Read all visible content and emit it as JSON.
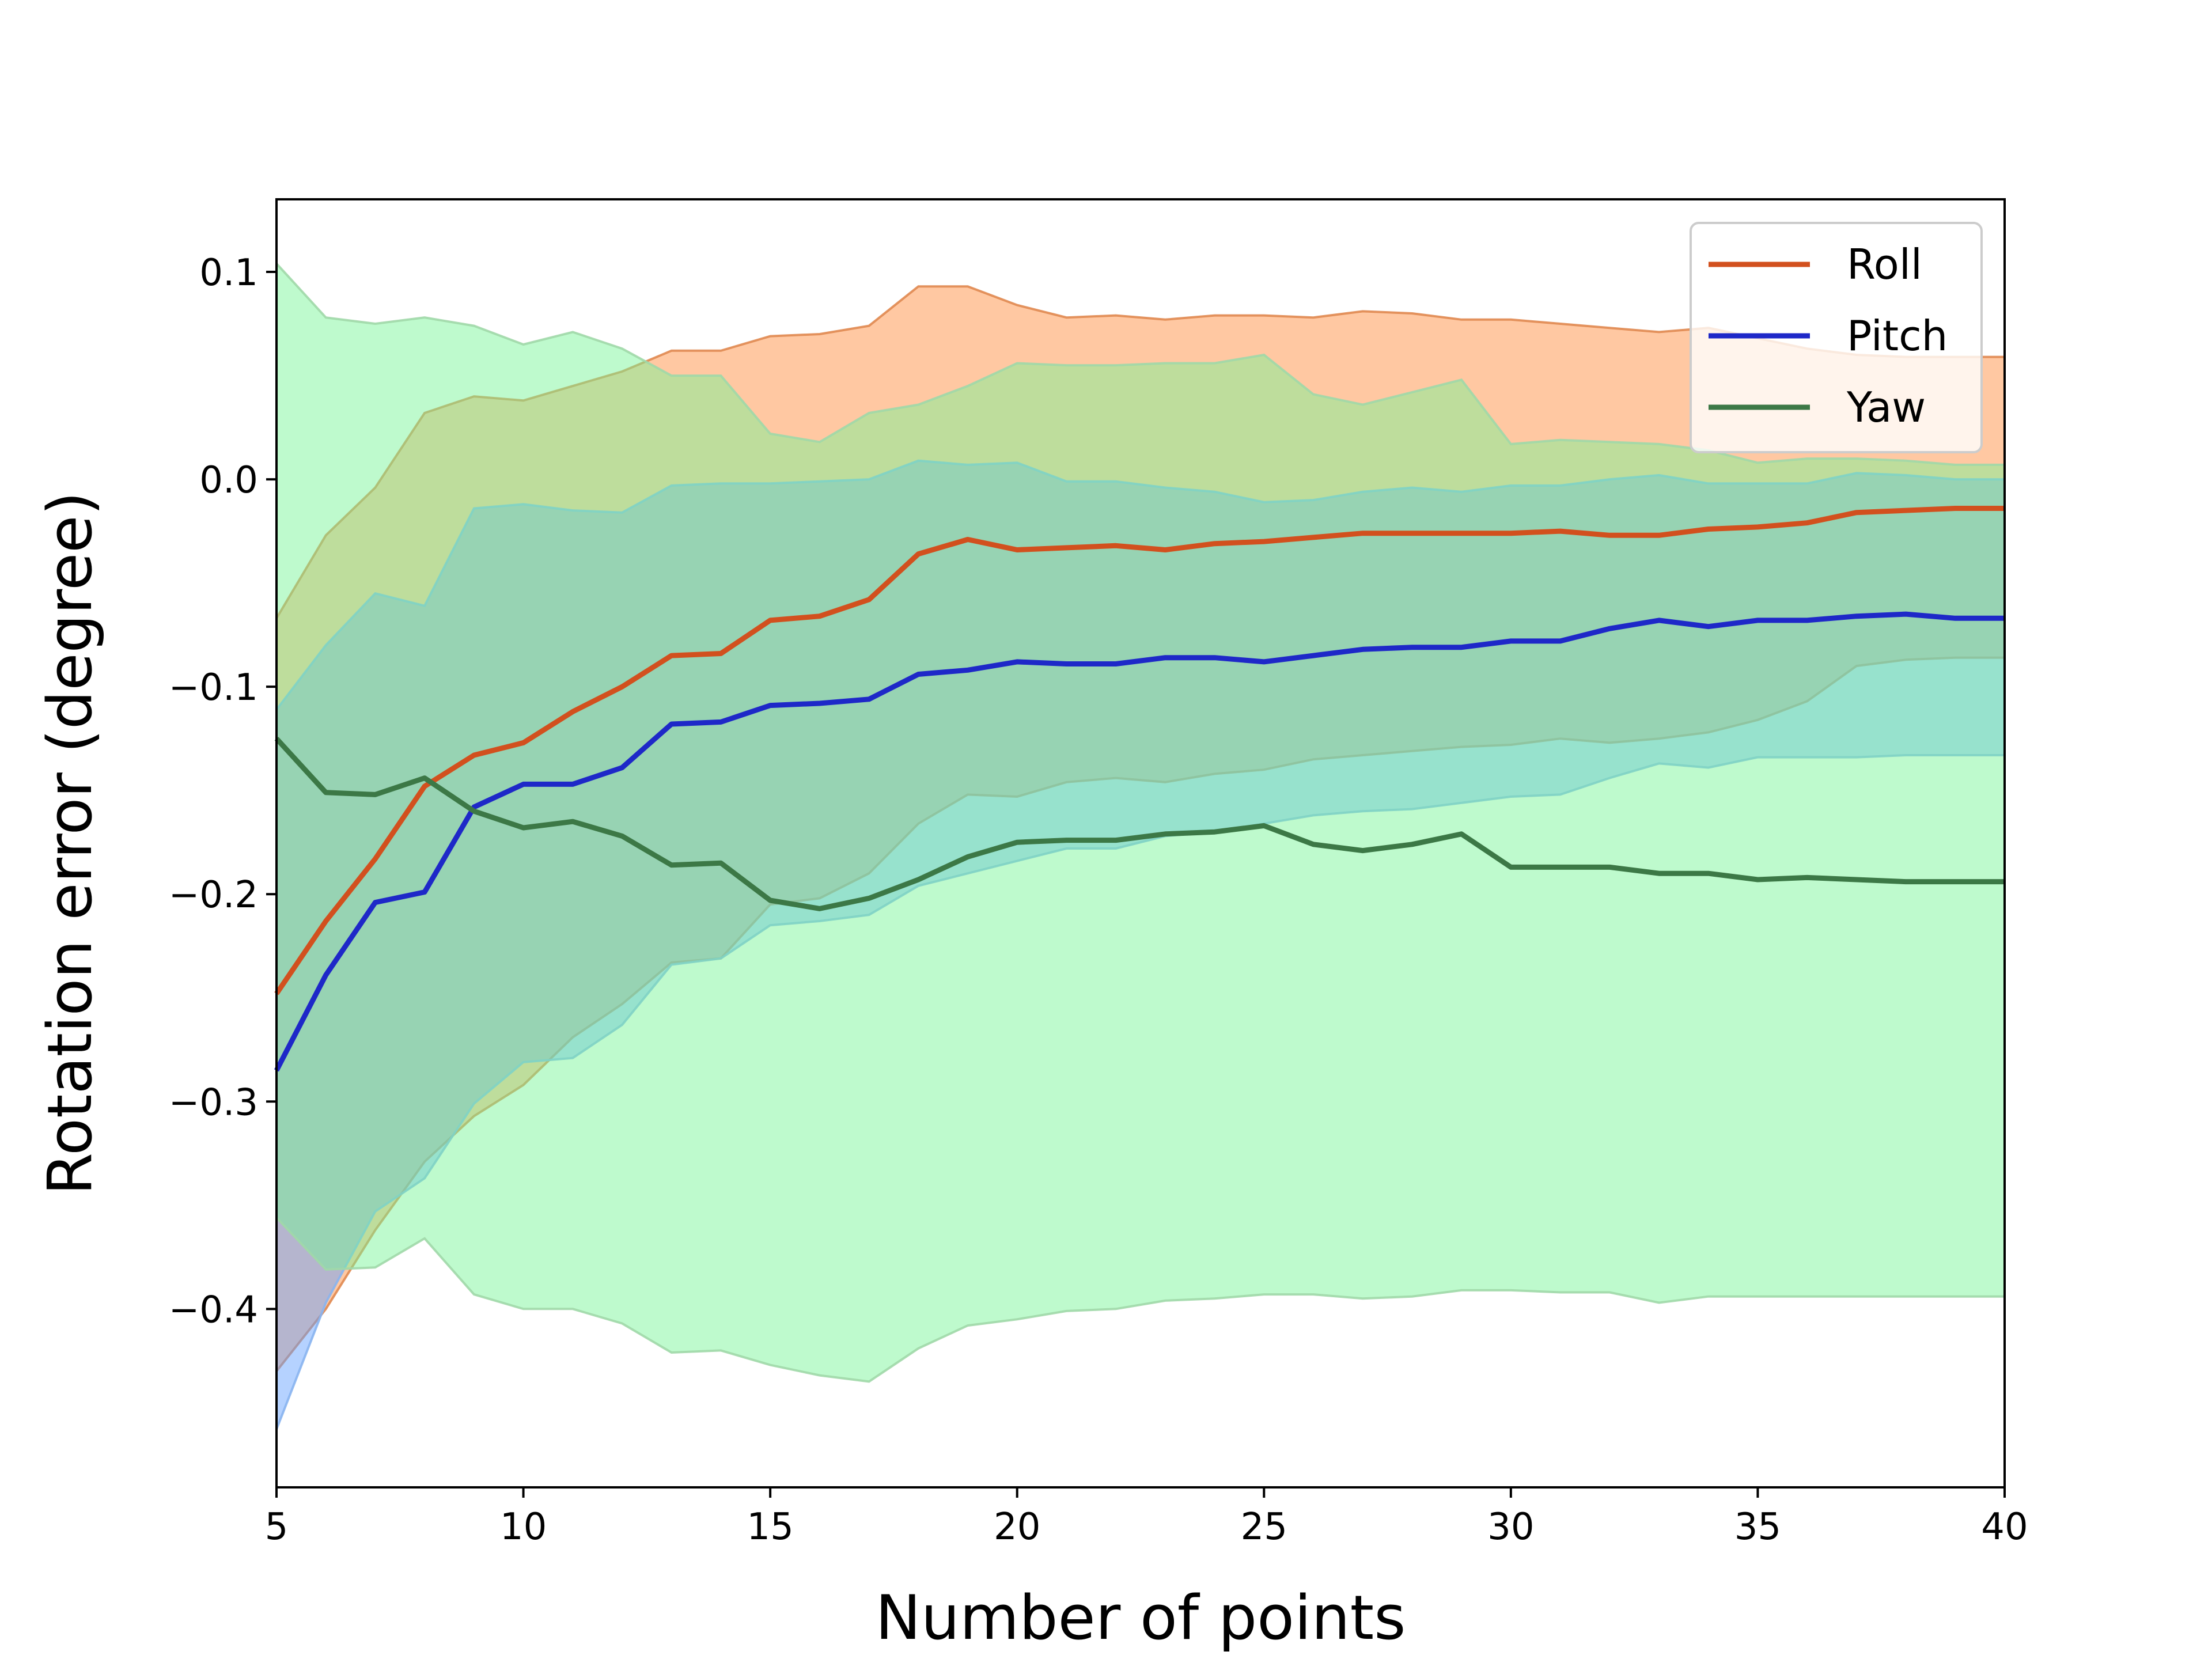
{
  "chart_data": {
    "type": "line",
    "title": "",
    "xlabel": "Number of points",
    "ylabel": "Rotation error (degree)",
    "xlim": [
      5,
      40
    ],
    "ylim": [
      -0.486,
      0.135
    ],
    "x_ticks": [
      5,
      10,
      15,
      20,
      25,
      30,
      35,
      40
    ],
    "x_tick_labels": [
      "5",
      "10",
      "15",
      "20",
      "25",
      "30",
      "35",
      "40"
    ],
    "y_ticks": [
      0.1,
      0.0,
      -0.1,
      -0.2,
      -0.3,
      -0.4
    ],
    "y_tick_labels": [
      "0.1",
      "0.0",
      "−0.1",
      "−0.2",
      "−0.3",
      "−0.4"
    ],
    "grid": false,
    "legend_position": "top-right",
    "x": [
      5,
      6,
      7,
      8,
      9,
      10,
      11,
      12,
      13,
      14,
      15,
      16,
      17,
      18,
      19,
      20,
      21,
      22,
      23,
      24,
      25,
      26,
      27,
      28,
      29,
      30,
      31,
      32,
      33,
      34,
      35,
      36,
      37,
      38,
      39,
      40
    ],
    "series": [
      {
        "name": "Roll",
        "color": "#d2501e",
        "band_color": "#ff8c3c",
        "band_edge_color": "#e08850",
        "values": [
          -0.248,
          -0.213,
          -0.183,
          -0.148,
          -0.133,
          -0.127,
          -0.112,
          -0.1,
          -0.085,
          -0.084,
          -0.068,
          -0.066,
          -0.058,
          -0.036,
          -0.029,
          -0.034,
          -0.033,
          -0.032,
          -0.034,
          -0.031,
          -0.03,
          -0.028,
          -0.026,
          -0.026,
          -0.026,
          -0.026,
          -0.025,
          -0.027,
          -0.027,
          -0.024,
          -0.023,
          -0.021,
          -0.016,
          -0.015,
          -0.014,
          -0.014
        ],
        "upper": [
          -0.067,
          -0.027,
          -0.004,
          0.032,
          0.04,
          0.038,
          0.045,
          0.052,
          0.062,
          0.062,
          0.069,
          0.07,
          0.074,
          0.093,
          0.093,
          0.084,
          0.078,
          0.079,
          0.077,
          0.079,
          0.079,
          0.078,
          0.081,
          0.08,
          0.077,
          0.077,
          0.075,
          0.073,
          0.071,
          0.073,
          0.068,
          0.063,
          0.06,
          0.059,
          0.059,
          0.059
        ],
        "lower": [
          -0.43,
          -0.4,
          -0.362,
          -0.329,
          -0.307,
          -0.292,
          -0.269,
          -0.253,
          -0.233,
          -0.231,
          -0.205,
          -0.202,
          -0.19,
          -0.166,
          -0.152,
          -0.153,
          -0.146,
          -0.144,
          -0.146,
          -0.142,
          -0.14,
          -0.135,
          -0.133,
          -0.131,
          -0.129,
          -0.128,
          -0.125,
          -0.127,
          -0.125,
          -0.122,
          -0.116,
          -0.107,
          -0.09,
          -0.087,
          -0.086,
          -0.086
        ]
      },
      {
        "name": "Pitch",
        "color": "#1e28c8",
        "band_color": "#64a0ff",
        "band_edge_color": "#88b4f0",
        "values": [
          -0.285,
          -0.239,
          -0.204,
          -0.199,
          -0.158,
          -0.147,
          -0.147,
          -0.139,
          -0.118,
          -0.117,
          -0.109,
          -0.108,
          -0.106,
          -0.094,
          -0.092,
          -0.088,
          -0.089,
          -0.089,
          -0.086,
          -0.086,
          -0.088,
          -0.085,
          -0.082,
          -0.081,
          -0.081,
          -0.078,
          -0.078,
          -0.072,
          -0.068,
          -0.071,
          -0.068,
          -0.068,
          -0.066,
          -0.065,
          -0.067,
          -0.067
        ],
        "upper": [
          -0.111,
          -0.08,
          -0.055,
          -0.061,
          -0.014,
          -0.012,
          -0.015,
          -0.016,
          -0.003,
          -0.002,
          -0.002,
          -0.001,
          0.0,
          0.009,
          0.007,
          0.008,
          -0.001,
          -0.001,
          -0.004,
          -0.006,
          -0.011,
          -0.01,
          -0.006,
          -0.004,
          -0.006,
          -0.003,
          -0.003,
          0.0,
          0.002,
          -0.002,
          -0.002,
          -0.002,
          0.003,
          0.002,
          0.0,
          0.0
        ],
        "lower": [
          -0.458,
          -0.397,
          -0.353,
          -0.337,
          -0.301,
          -0.281,
          -0.279,
          -0.263,
          -0.234,
          -0.231,
          -0.215,
          -0.213,
          -0.21,
          -0.196,
          -0.19,
          -0.184,
          -0.178,
          -0.178,
          -0.172,
          -0.17,
          -0.166,
          -0.162,
          -0.16,
          -0.159,
          -0.156,
          -0.153,
          -0.152,
          -0.144,
          -0.137,
          -0.139,
          -0.134,
          -0.134,
          -0.134,
          -0.133,
          -0.133,
          -0.133
        ]
      },
      {
        "name": "Yaw",
        "color": "#3c7846",
        "band_color": "#78f596",
        "band_edge_color": "#a0d8a8",
        "values": [
          -0.125,
          -0.151,
          -0.152,
          -0.144,
          -0.16,
          -0.168,
          -0.165,
          -0.172,
          -0.186,
          -0.185,
          -0.203,
          -0.207,
          -0.202,
          -0.193,
          -0.182,
          -0.175,
          -0.174,
          -0.174,
          -0.171,
          -0.17,
          -0.167,
          -0.176,
          -0.179,
          -0.176,
          -0.171,
          -0.187,
          -0.187,
          -0.187,
          -0.19,
          -0.19,
          -0.193,
          -0.192,
          -0.193,
          -0.194,
          -0.194,
          -0.194
        ],
        "upper": [
          0.104,
          0.078,
          0.075,
          0.078,
          0.074,
          0.065,
          0.071,
          0.063,
          0.05,
          0.05,
          0.022,
          0.018,
          0.032,
          0.036,
          0.045,
          0.056,
          0.055,
          0.055,
          0.056,
          0.056,
          0.06,
          0.041,
          0.036,
          0.042,
          0.048,
          0.017,
          0.019,
          0.018,
          0.017,
          0.014,
          0.008,
          0.01,
          0.01,
          0.009,
          0.007,
          0.007
        ],
        "lower": [
          -0.356,
          -0.381,
          -0.38,
          -0.366,
          -0.393,
          -0.4,
          -0.4,
          -0.407,
          -0.421,
          -0.42,
          -0.427,
          -0.432,
          -0.435,
          -0.419,
          -0.408,
          -0.405,
          -0.401,
          -0.4,
          -0.396,
          -0.395,
          -0.393,
          -0.393,
          -0.395,
          -0.394,
          -0.391,
          -0.391,
          -0.392,
          -0.392,
          -0.397,
          -0.394,
          -0.394,
          -0.394,
          -0.394,
          -0.394,
          -0.394,
          -0.394
        ]
      }
    ]
  }
}
